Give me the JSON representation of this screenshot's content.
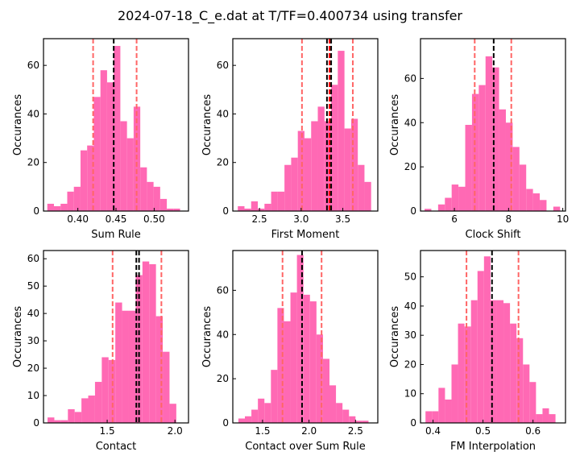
{
  "figure_title": "2024-07-18_C_e.dat at T/TF=0.400734 using transfer",
  "colors": {
    "bar": "#ff69b4",
    "median_line": "#000000",
    "mean_line": "#ff0000",
    "ci_line": "#ff6666"
  },
  "chart_data": [
    {
      "type": "bar",
      "xlabel": "Sum Rule",
      "ylabel": "Occurances",
      "xlim": [
        0.355,
        0.545
      ],
      "ylim": [
        0,
        71
      ],
      "xticks": [
        0.4,
        0.45,
        0.5
      ],
      "xtick_labels": [
        "0.40",
        "0.45",
        "0.50"
      ],
      "yticks": [
        0,
        20,
        40,
        60
      ],
      "ytick_labels": [
        "0",
        "20",
        "40",
        "60"
      ],
      "bin_edges": [
        0.36,
        0.3687,
        0.3774,
        0.3861,
        0.3948,
        0.4035,
        0.4122,
        0.4209,
        0.4296,
        0.4383,
        0.447,
        0.4557,
        0.4644,
        0.4731,
        0.4818,
        0.4905,
        0.4992,
        0.5079,
        0.5166,
        0.5253,
        0.534
      ],
      "counts": [
        3,
        2,
        3,
        8,
        10,
        25,
        27,
        47,
        58,
        53,
        68,
        37,
        30,
        43,
        18,
        12,
        10,
        5,
        1,
        1
      ],
      "vlines": [
        {
          "x": 0.42,
          "style": "ci"
        },
        {
          "x": 0.447,
          "style": "median"
        },
        {
          "x": 0.477,
          "style": "ci"
        }
      ]
    },
    {
      "type": "bar",
      "xlabel": "First Moment",
      "ylabel": "Occurances",
      "xlim": [
        2.18,
        3.92
      ],
      "ylim": [
        0,
        71
      ],
      "xticks": [
        2.5,
        3.0,
        3.5
      ],
      "xtick_labels": [
        "2.5",
        "3.0",
        "3.5"
      ],
      "yticks": [
        0,
        20,
        40,
        60
      ],
      "ytick_labels": [
        "0",
        "20",
        "40",
        "60"
      ],
      "bin_edges": [
        2.24,
        2.32,
        2.4,
        2.48,
        2.56,
        2.64,
        2.72,
        2.8,
        2.88,
        2.96,
        3.04,
        3.12,
        3.2,
        3.28,
        3.36,
        3.44,
        3.52,
        3.6,
        3.68,
        3.76,
        3.84
      ],
      "counts": [
        2,
        1,
        4,
        1,
        3,
        8,
        8,
        19,
        22,
        33,
        30,
        37,
        43,
        37,
        52,
        66,
        34,
        38,
        19,
        12
      ],
      "vlines": [
        {
          "x": 3.01,
          "style": "ci"
        },
        {
          "x": 3.31,
          "style": "median"
        },
        {
          "x": 3.34,
          "style": "mean"
        },
        {
          "x": 3.36,
          "style": "median"
        },
        {
          "x": 3.62,
          "style": "ci"
        }
      ]
    },
    {
      "type": "bar",
      "xlabel": "Clock Shift",
      "ylabel": "Occurances",
      "xlim": [
        4.75,
        10.1
      ],
      "ylim": [
        0,
        78
      ],
      "xticks": [
        6,
        8,
        10
      ],
      "xtick_labels": [
        "6",
        "8",
        "10"
      ],
      "yticks": [
        0,
        20,
        40,
        60
      ],
      "ytick_labels": [
        "0",
        "20",
        "40",
        "60"
      ],
      "bin_edges": [
        4.9,
        5.15,
        5.4,
        5.65,
        5.9,
        6.15,
        6.4,
        6.65,
        6.9,
        7.15,
        7.4,
        7.65,
        7.9,
        8.15,
        8.4,
        8.65,
        8.9,
        9.15,
        9.4,
        9.65,
        9.9
      ],
      "counts": [
        1,
        0,
        3,
        6,
        12,
        11,
        39,
        53,
        57,
        70,
        65,
        46,
        40,
        29,
        21,
        10,
        8,
        5,
        0,
        2
      ],
      "vlines": [
        {
          "x": 6.75,
          "style": "ci"
        },
        {
          "x": 7.45,
          "style": "median"
        },
        {
          "x": 8.1,
          "style": "ci"
        }
      ]
    },
    {
      "type": "bar",
      "xlabel": "Contact",
      "ylabel": "Occurances",
      "xlim": [
        1.03,
        2.1
      ],
      "ylim": [
        0,
        63
      ],
      "xticks": [
        1.5,
        2.0
      ],
      "xtick_labels": [
        "1.5",
        "2.0"
      ],
      "yticks": [
        0,
        10,
        20,
        30,
        40,
        50,
        60
      ],
      "ytick_labels": [
        "0",
        "10",
        "20",
        "30",
        "40",
        "50",
        "60"
      ],
      "bin_edges": [
        1.06,
        1.11,
        1.16,
        1.21,
        1.26,
        1.31,
        1.36,
        1.41,
        1.46,
        1.51,
        1.56,
        1.61,
        1.66,
        1.71,
        1.76,
        1.81,
        1.86,
        1.91,
        1.96,
        2.01,
        2.06
      ],
      "counts": [
        2,
        1,
        1,
        5,
        4,
        9,
        10,
        15,
        24,
        23,
        44,
        41,
        41,
        54,
        59,
        58,
        39,
        26,
        7,
        0
      ],
      "vlines": [
        {
          "x": 1.54,
          "style": "ci"
        },
        {
          "x": 1.715,
          "style": "median"
        },
        {
          "x": 1.735,
          "style": "median"
        },
        {
          "x": 1.9,
          "style": "ci"
        }
      ]
    },
    {
      "type": "bar",
      "xlabel": "Contact over Sum Rule",
      "ylabel": "Occurances",
      "xlim": [
        1.18,
        2.74
      ],
      "ylim": [
        0,
        78
      ],
      "xticks": [
        1.5,
        2.0,
        2.5
      ],
      "xtick_labels": [
        "1.5",
        "2.0",
        "2.5"
      ],
      "yticks": [
        0,
        20,
        40,
        60
      ],
      "ytick_labels": [
        "0",
        "20",
        "40",
        "60"
      ],
      "bin_edges": [
        1.24,
        1.31,
        1.38,
        1.45,
        1.52,
        1.59,
        1.66,
        1.73,
        1.8,
        1.87,
        1.94,
        2.01,
        2.08,
        2.15,
        2.22,
        2.29,
        2.36,
        2.43,
        2.5,
        2.57,
        2.64
      ],
      "counts": [
        2,
        3,
        6,
        11,
        9,
        24,
        52,
        46,
        59,
        76,
        58,
        55,
        40,
        29,
        17,
        9,
        6,
        3,
        1,
        1
      ],
      "vlines": [
        {
          "x": 1.715,
          "style": "ci"
        },
        {
          "x": 1.925,
          "style": "median"
        },
        {
          "x": 2.135,
          "style": "ci"
        }
      ]
    },
    {
      "type": "bar",
      "xlabel": "FM Interpolation",
      "ylabel": "Occurances",
      "xlim": [
        0.375,
        0.665
      ],
      "ylim": [
        0,
        59
      ],
      "xticks": [
        0.4,
        0.5,
        0.6
      ],
      "xtick_labels": [
        "0.4",
        "0.5",
        "0.6"
      ],
      "yticks": [
        0,
        10,
        20,
        30,
        40,
        50
      ],
      "ytick_labels": [
        "0",
        "10",
        "20",
        "30",
        "40",
        "50"
      ],
      "bin_edges": [
        0.385,
        0.398,
        0.411,
        0.424,
        0.437,
        0.45,
        0.463,
        0.476,
        0.489,
        0.502,
        0.515,
        0.528,
        0.541,
        0.554,
        0.567,
        0.58,
        0.593,
        0.606,
        0.619,
        0.632,
        0.645
      ],
      "counts": [
        4,
        4,
        12,
        8,
        20,
        34,
        33,
        42,
        52,
        57,
        42,
        42,
        41,
        34,
        29,
        20,
        14,
        3,
        5,
        3
      ],
      "vlines": [
        {
          "x": 0.467,
          "style": "ci"
        },
        {
          "x": 0.518,
          "style": "median"
        },
        {
          "x": 0.571,
          "style": "ci"
        }
      ]
    }
  ]
}
